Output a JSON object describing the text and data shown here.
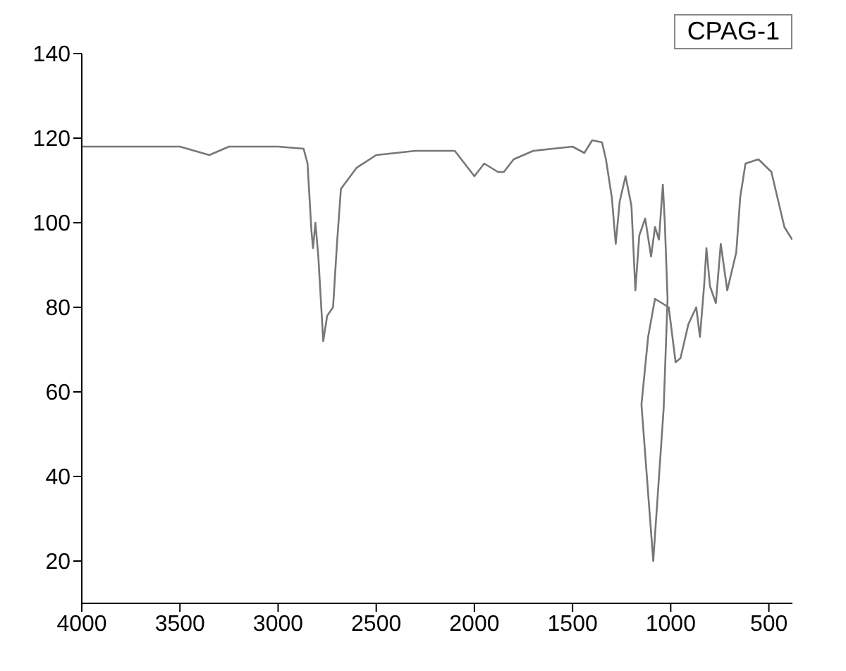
{
  "chart_data": {
    "type": "line",
    "annotations": [
      "CPAG-1"
    ],
    "x": [
      4000,
      3500,
      3350,
      3250,
      3000,
      2870,
      2850,
      2830,
      2822,
      2810,
      2795,
      2770,
      2750,
      2720,
      2700,
      2680,
      2600,
      2500,
      2300,
      2100,
      2000,
      1950,
      1880,
      1850,
      1800,
      1700,
      1600,
      1500,
      1440,
      1400,
      1350,
      1330,
      1300,
      1280,
      1260,
      1230,
      1200,
      1180,
      1160,
      1130,
      1100,
      1080,
      1060,
      1040,
      1030,
      1016,
      1036,
      1089,
      1149,
      1115,
      1080,
      1010,
      975,
      950,
      910,
      870,
      851,
      830,
      818,
      800,
      770,
      745,
      712,
      666,
      646,
      619,
      553,
      487,
      421,
      381
    ],
    "series": [
      {
        "color": "#777777",
        "values": [
          118,
          118,
          116,
          118,
          118,
          117.5,
          114,
          98,
          94,
          100,
          92,
          72,
          78,
          80,
          95,
          108,
          113,
          116,
          117,
          117,
          111,
          114,
          112,
          112,
          115,
          117,
          117.5,
          118,
          116.5,
          119.5,
          119,
          115,
          106,
          95,
          105,
          111,
          104,
          84,
          97,
          101,
          92,
          99,
          96,
          109,
          100,
          82,
          56,
          20,
          57,
          73,
          82,
          80,
          67,
          68,
          76,
          80,
          73,
          85,
          94,
          85,
          81,
          95,
          84,
          93,
          106,
          114,
          115,
          112,
          99,
          96
        ]
      }
    ],
    "xlim": [
      4000,
      380
    ],
    "xticks": [
      4000,
      3500,
      3000,
      2500,
      2000,
      1500,
      1000,
      500
    ],
    "ylim": [
      10,
      140
    ],
    "yticks": [
      20,
      40,
      60,
      80,
      100,
      120,
      140
    ],
    "grid": false,
    "legend": false,
    "marker": "none",
    "line_style": "solid"
  }
}
